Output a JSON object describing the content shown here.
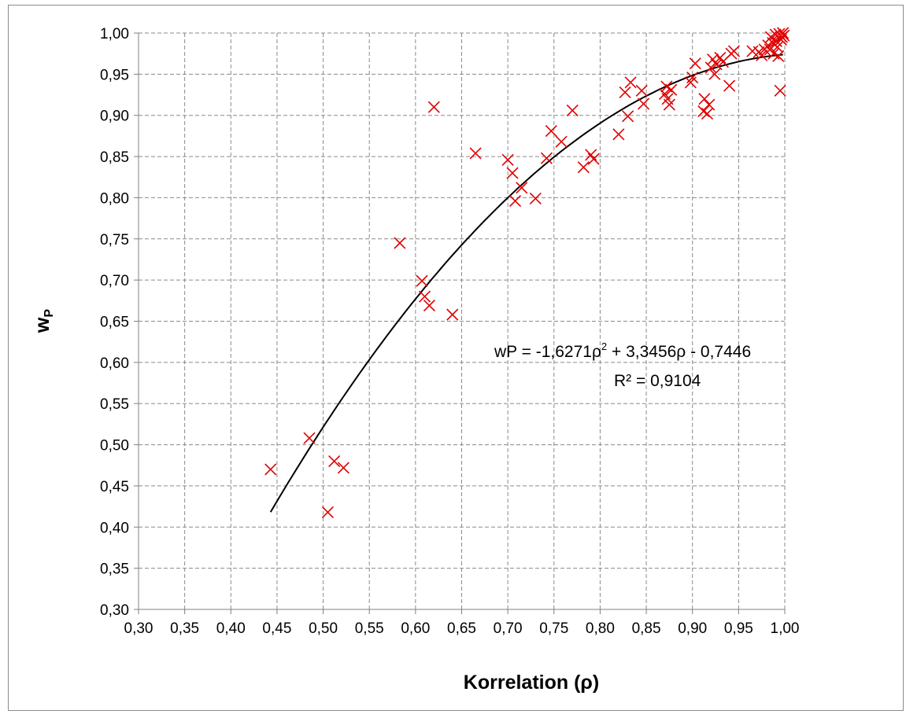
{
  "chart_data": {
    "type": "scatter",
    "xlabel": "Korrelation (ρ)",
    "ylabel": "wP",
    "xlim": [
      0.3,
      1.0
    ],
    "ylim": [
      0.3,
      1.0
    ],
    "xticks": [
      "0,30",
      "0,35",
      "0,40",
      "0,45",
      "0,50",
      "0,55",
      "0,60",
      "0,65",
      "0,70",
      "0,75",
      "0,80",
      "0,85",
      "0,90",
      "0,95",
      "1,00"
    ],
    "yticks": [
      "0,30",
      "0,35",
      "0,40",
      "0,45",
      "0,50",
      "0,55",
      "0,60",
      "0,65",
      "0,70",
      "0,75",
      "0,80",
      "0,85",
      "0,90",
      "0,95",
      "1,00"
    ],
    "grid": true,
    "marker_color": "#e00000",
    "trend_color": "#000000",
    "points": [
      [
        0.443,
        0.47
      ],
      [
        0.485,
        0.508
      ],
      [
        0.505,
        0.418
      ],
      [
        0.512,
        0.48
      ],
      [
        0.522,
        0.472
      ],
      [
        0.583,
        0.745
      ],
      [
        0.607,
        0.699
      ],
      [
        0.61,
        0.68
      ],
      [
        0.615,
        0.669
      ],
      [
        0.62,
        0.91
      ],
      [
        0.64,
        0.658
      ],
      [
        0.665,
        0.854
      ],
      [
        0.7,
        0.846
      ],
      [
        0.705,
        0.83
      ],
      [
        0.708,
        0.796
      ],
      [
        0.715,
        0.812
      ],
      [
        0.73,
        0.799
      ],
      [
        0.742,
        0.848
      ],
      [
        0.747,
        0.881
      ],
      [
        0.758,
        0.868
      ],
      [
        0.77,
        0.906
      ],
      [
        0.782,
        0.837
      ],
      [
        0.79,
        0.852
      ],
      [
        0.793,
        0.847
      ],
      [
        0.82,
        0.877
      ],
      [
        0.827,
        0.928
      ],
      [
        0.83,
        0.899
      ],
      [
        0.833,
        0.94
      ],
      [
        0.845,
        0.93
      ],
      [
        0.847,
        0.914
      ],
      [
        0.87,
        0.926
      ],
      [
        0.872,
        0.935
      ],
      [
        0.873,
        0.92
      ],
      [
        0.875,
        0.913
      ],
      [
        0.877,
        0.931
      ],
      [
        0.898,
        0.94
      ],
      [
        0.9,
        0.946
      ],
      [
        0.903,
        0.963
      ],
      [
        0.912,
        0.905
      ],
      [
        0.913,
        0.92
      ],
      [
        0.916,
        0.902
      ],
      [
        0.918,
        0.913
      ],
      [
        0.92,
        0.958
      ],
      [
        0.922,
        0.968
      ],
      [
        0.924,
        0.95
      ],
      [
        0.926,
        0.962
      ],
      [
        0.93,
        0.97
      ],
      [
        0.933,
        0.965
      ],
      [
        0.94,
        0.936
      ],
      [
        0.942,
        0.975
      ],
      [
        0.945,
        0.978
      ],
      [
        0.965,
        0.978
      ],
      [
        0.972,
        0.977
      ],
      [
        0.975,
        0.973
      ],
      [
        0.978,
        0.98
      ],
      [
        0.982,
        0.985
      ],
      [
        0.984,
        0.98
      ],
      [
        0.985,
        0.995
      ],
      [
        0.987,
        0.988
      ],
      [
        0.988,
        0.975
      ],
      [
        0.99,
        0.998
      ],
      [
        0.991,
        0.99
      ],
      [
        0.992,
        0.983
      ],
      [
        0.993,
        0.972
      ],
      [
        0.994,
        0.999
      ],
      [
        0.995,
        0.93
      ],
      [
        0.996,
        0.992
      ],
      [
        0.997,
        0.995
      ],
      [
        0.998,
        1.0
      ],
      [
        0.999,
        0.997
      ]
    ],
    "trendline": {
      "coefficients": [
        -0.7446,
        3.3456,
        -1.6271
      ],
      "x_range": [
        0.443,
        0.998
      ],
      "equation_parts": [
        "wP = -1,6271ρ",
        "2",
        " + 3,3456ρ - 0,7446"
      ],
      "r_squared_text": "R² = 0,9104"
    }
  }
}
